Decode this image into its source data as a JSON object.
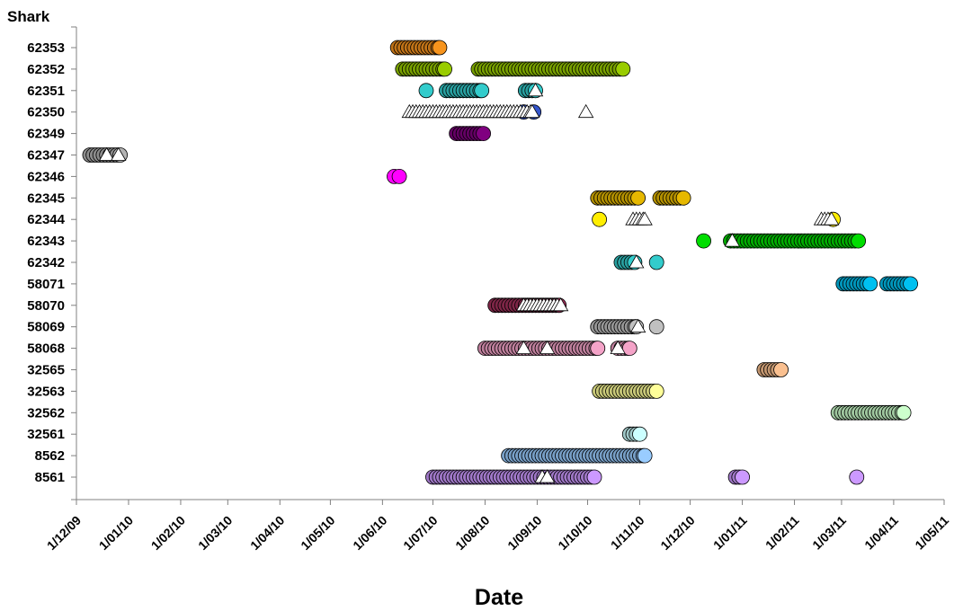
{
  "chart_data": {
    "type": "scatter",
    "title": "",
    "ylabel": "Shark",
    "xlabel": "Date",
    "grid": false,
    "legend": "none",
    "xlim": [
      "2009-12-01",
      "2011-05-01"
    ],
    "x_ticks": [
      "1/12/09",
      "1/01/10",
      "1/02/10",
      "1/03/10",
      "1/04/10",
      "1/05/10",
      "1/06/10",
      "1/07/10",
      "1/08/10",
      "1/09/10",
      "1/10/10",
      "1/11/10",
      "1/12/10",
      "1/01/11",
      "1/02/11",
      "1/03/11",
      "1/04/11",
      "1/05/11"
    ],
    "categories": [
      "62353",
      "62352",
      "62351",
      "62350",
      "62349",
      "62347",
      "62346",
      "62345",
      "62344",
      "62343",
      "62342",
      "58071",
      "58070",
      "58069",
      "58068",
      "32565",
      "32563",
      "32562",
      "32561",
      "8562",
      "8561"
    ],
    "series": [
      {
        "shark": "62353",
        "color": "#f7941d",
        "circles": [
          [
            "2010-06-10",
            "2010-07-05"
          ]
        ],
        "triangles": []
      },
      {
        "shark": "62352",
        "color": "#99cc00",
        "circles": [
          [
            "2010-06-13",
            "2010-07-08"
          ],
          [
            "2010-07-28",
            "2010-10-22"
          ]
        ],
        "triangles": []
      },
      {
        "shark": "62351",
        "color": "#33cccc",
        "circles": [
          "2010-06-27",
          [
            "2010-07-09",
            "2010-07-30"
          ],
          [
            "2010-08-25",
            "2010-08-31"
          ]
        ],
        "triangles": [
          "2010-08-31"
        ]
      },
      {
        "shark": "62350",
        "color": "#3355cc",
        "circles": [
          "2010-08-24",
          "2010-08-30"
        ],
        "triangles": [
          [
            "2010-06-17",
            "2010-08-29"
          ],
          "2010-09-30"
        ]
      },
      {
        "shark": "62349",
        "color": "#800080",
        "circles": [
          [
            "2010-07-15",
            "2010-07-31"
          ]
        ],
        "triangles": []
      },
      {
        "shark": "62347",
        "color": "#b3b3b3",
        "circles": [
          [
            "2009-12-09",
            "2009-12-27"
          ]
        ],
        "triangles": [
          "2009-12-19",
          "2009-12-26"
        ]
      },
      {
        "shark": "62346",
        "color": "#ff00ff",
        "circles": [
          "2010-06-08",
          "2010-06-11"
        ],
        "triangles": []
      },
      {
        "shark": "62345",
        "color": "#e6b800",
        "circles": [
          [
            "2010-10-07",
            "2010-10-31"
          ],
          [
            "2010-11-13",
            "2010-11-27"
          ]
        ],
        "triangles": []
      },
      {
        "shark": "62344",
        "color": "#ffee00",
        "circles": [
          "2010-10-08",
          "2011-02-24"
        ],
        "triangles": [
          [
            "2010-10-28",
            "2010-11-04"
          ],
          [
            "2011-02-17",
            "2011-02-23"
          ]
        ]
      },
      {
        "shark": "62343",
        "color": "#00dd00",
        "circles": [
          "2010-12-09",
          [
            "2010-12-25",
            "2011-03-11"
          ]
        ],
        "triangles": [
          "2010-12-26"
        ]
      },
      {
        "shark": "62342",
        "color": "#33cccc",
        "circles": [
          [
            "2010-10-21",
            "2010-10-29"
          ],
          "2010-11-11"
        ],
        "triangles": [
          "2010-10-30"
        ]
      },
      {
        "shark": "58071",
        "color": "#00c0f0",
        "circles": [
          [
            "2011-03-02",
            "2011-03-18"
          ],
          [
            "2011-03-28",
            "2011-04-11"
          ]
        ],
        "triangles": []
      },
      {
        "shark": "58070",
        "color": "#a0305a",
        "circles": [
          [
            "2010-08-07",
            "2010-09-14"
          ]
        ],
        "triangles": [
          [
            "2010-08-24",
            "2010-09-15"
          ]
        ]
      },
      {
        "shark": "58069",
        "color": "#c0c0c0",
        "circles": [
          [
            "2010-10-07",
            "2010-10-30"
          ],
          "2010-11-11"
        ],
        "triangles": [
          "2010-10-31"
        ]
      },
      {
        "shark": "58068",
        "color": "#f4a3c8",
        "circles": [
          [
            "2010-08-01",
            "2010-10-07"
          ],
          [
            "2010-10-19",
            "2010-10-26"
          ]
        ],
        "triangles": [
          "2010-08-24",
          "2010-09-07",
          "2010-10-19"
        ]
      },
      {
        "shark": "32565",
        "color": "#fac090",
        "circles": [
          [
            "2011-01-14",
            "2011-01-24"
          ]
        ],
        "triangles": []
      },
      {
        "shark": "32563",
        "color": "#ffff99",
        "circles": [
          [
            "2010-10-08",
            "2010-11-11"
          ]
        ],
        "triangles": []
      },
      {
        "shark": "32562",
        "color": "#ccffcc",
        "circles": [
          [
            "2011-02-27",
            "2011-04-07"
          ]
        ],
        "triangles": []
      },
      {
        "shark": "32561",
        "color": "#ccffff",
        "circles": [
          [
            "2010-10-26",
            "2010-11-01"
          ]
        ],
        "triangles": []
      },
      {
        "shark": "8562",
        "color": "#99ccff",
        "circles": [
          [
            "2010-08-15",
            "2010-11-04"
          ]
        ],
        "triangles": []
      },
      {
        "shark": "8561",
        "color": "#cc99ff",
        "circles": [
          [
            "2010-07-01",
            "2010-10-05"
          ],
          [
            "2010-12-28",
            "2011-01-01"
          ],
          "2011-03-10"
        ],
        "triangles": [
          "2010-09-04",
          "2010-09-07"
        ]
      }
    ]
  }
}
